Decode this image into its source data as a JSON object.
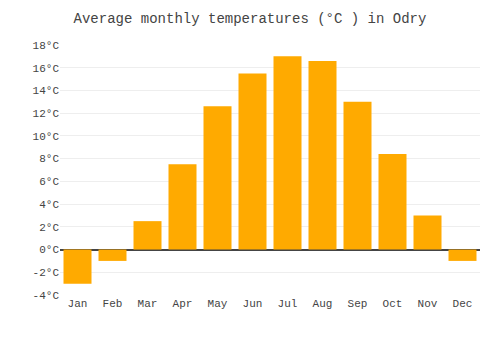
{
  "chart_data": {
    "type": "bar",
    "title": "Average monthly temperatures (°C ) in Odry",
    "categories": [
      "Jan",
      "Feb",
      "Mar",
      "Apr",
      "May",
      "Jun",
      "Jul",
      "Aug",
      "Sep",
      "Oct",
      "Nov",
      "Dec"
    ],
    "values": [
      -3.0,
      -1.0,
      2.5,
      7.5,
      12.6,
      15.5,
      17.0,
      16.6,
      13.0,
      8.4,
      3.0,
      -1.0
    ],
    "color": "#FFAA00",
    "ylim": [
      -4,
      18
    ],
    "yticks": [
      {
        "value": -4,
        "label": "-4°C"
      },
      {
        "value": -2,
        "label": "-2°C"
      },
      {
        "value": 0,
        "label": "0°C"
      },
      {
        "value": 2,
        "label": "2°C"
      },
      {
        "value": 4,
        "label": "4°C"
      },
      {
        "value": 6,
        "label": "6°C"
      },
      {
        "value": 8,
        "label": "8°C"
      },
      {
        "value": 10,
        "label": "10°C"
      },
      {
        "value": 12,
        "label": "12°C"
      },
      {
        "value": 14,
        "label": "14°C"
      },
      {
        "value": 16,
        "label": "16°C"
      },
      {
        "value": 18,
        "label": "18°C"
      }
    ],
    "grid": true
  }
}
